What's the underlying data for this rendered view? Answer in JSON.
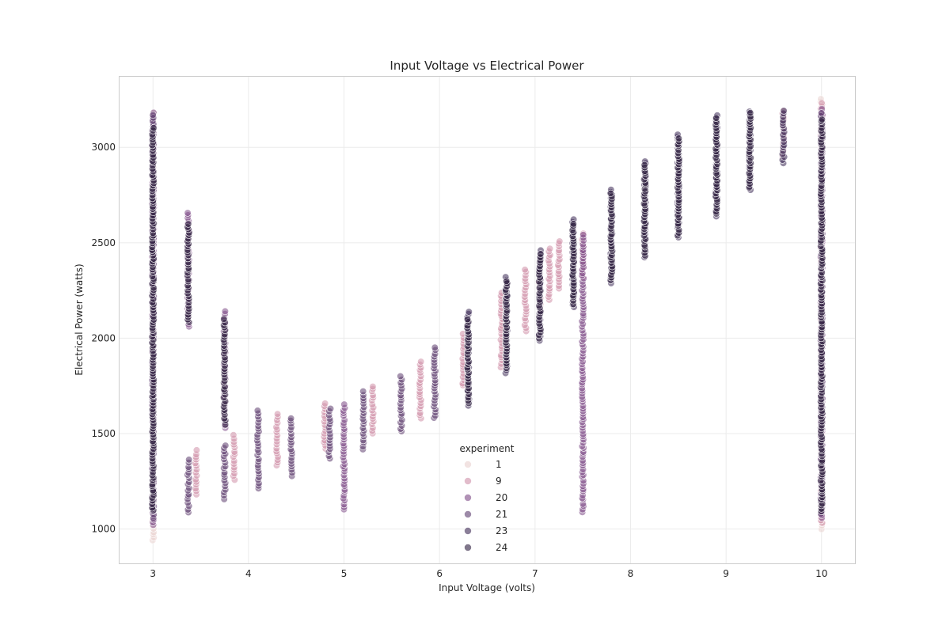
{
  "chart_data": {
    "type": "scatter",
    "title": "Input Voltage vs Electrical Power",
    "xlabel": "Input Voltage (volts)",
    "ylabel": "Electrical Power (watts)",
    "xlim": [
      2.65,
      10.35
    ],
    "ylim": [
      820,
      3370
    ],
    "xticks": [
      3,
      4,
      5,
      6,
      7,
      8,
      9,
      10
    ],
    "yticks": [
      1000,
      1500,
      2000,
      2500,
      3000
    ],
    "grid": true,
    "legend": {
      "title": "experiment",
      "placement": "lower-center",
      "entries": [
        "1",
        "9",
        "20",
        "21",
        "23",
        "24"
      ]
    },
    "colors": {
      "1": "#ead1cf",
      "9": "#cf8fa8",
      "20": "#7d4a86",
      "21": "#5c3c6e",
      "23": "#3d2a55",
      "24": "#2b1d3d"
    },
    "series": [
      {
        "name": "1",
        "columns": [
          {
            "x": 3.0,
            "ymin": 940,
            "ymax": 3180
          },
          {
            "x": 10.0,
            "ymin": 1000,
            "ymax": 3250
          }
        ]
      },
      {
        "name": "9",
        "columns": [
          {
            "x": 3.45,
            "ymin": 1180,
            "ymax": 1410
          },
          {
            "x": 3.85,
            "ymin": 1260,
            "ymax": 1490
          },
          {
            "x": 4.3,
            "ymin": 1330,
            "ymax": 1600
          },
          {
            "x": 4.8,
            "ymin": 1420,
            "ymax": 1660
          },
          {
            "x": 5.3,
            "ymin": 1500,
            "ymax": 1750
          },
          {
            "x": 5.8,
            "ymin": 1580,
            "ymax": 1880
          },
          {
            "x": 6.25,
            "ymin": 1750,
            "ymax": 2020
          },
          {
            "x": 6.65,
            "ymin": 1850,
            "ymax": 2240
          },
          {
            "x": 6.9,
            "ymin": 2040,
            "ymax": 2360
          },
          {
            "x": 7.05,
            "ymin": 2150,
            "ymax": 2420
          },
          {
            "x": 7.15,
            "ymin": 2200,
            "ymax": 2470
          },
          {
            "x": 7.25,
            "ymin": 2260,
            "ymax": 2510
          },
          {
            "x": 7.5,
            "ymin": 2320,
            "ymax": 2550
          },
          {
            "x": 9.6,
            "ymin": 2950,
            "ymax": 3190
          },
          {
            "x": 10.0,
            "ymin": 1030,
            "ymax": 3230
          }
        ]
      },
      {
        "name": "20",
        "columns": [
          {
            "x": 3.0,
            "ymin": 1020,
            "ymax": 3180
          },
          {
            "x": 3.37,
            "ymin": 2060,
            "ymax": 2660
          },
          {
            "x": 3.75,
            "ymin": 1530,
            "ymax": 2140
          },
          {
            "x": 5.0,
            "ymin": 1100,
            "ymax": 1650
          },
          {
            "x": 7.5,
            "ymin": 1090,
            "ymax": 2540
          },
          {
            "x": 10.0,
            "ymin": 1060,
            "ymax": 3200
          }
        ]
      },
      {
        "name": "21",
        "columns": [
          {
            "x": 3.0,
            "ymin": 1060,
            "ymax": 3170
          },
          {
            "x": 3.37,
            "ymin": 1090,
            "ymax": 1360
          },
          {
            "x": 3.75,
            "ymin": 1160,
            "ymax": 1440
          },
          {
            "x": 4.1,
            "ymin": 1210,
            "ymax": 1620
          },
          {
            "x": 4.45,
            "ymin": 1280,
            "ymax": 1580
          },
          {
            "x": 4.85,
            "ymin": 1370,
            "ymax": 1630
          },
          {
            "x": 5.2,
            "ymin": 1420,
            "ymax": 1720
          },
          {
            "x": 5.6,
            "ymin": 1510,
            "ymax": 1800
          },
          {
            "x": 5.95,
            "ymin": 1580,
            "ymax": 1950
          },
          {
            "x": 10.0,
            "ymin": 1080,
            "ymax": 3180
          }
        ]
      },
      {
        "name": "23",
        "columns": [
          {
            "x": 6.3,
            "ymin": 1650,
            "ymax": 2140
          },
          {
            "x": 6.7,
            "ymin": 1820,
            "ymax": 2320
          },
          {
            "x": 7.05,
            "ymin": 1990,
            "ymax": 2460
          },
          {
            "x": 7.4,
            "ymin": 2160,
            "ymax": 2620
          },
          {
            "x": 7.8,
            "ymin": 2290,
            "ymax": 2780
          },
          {
            "x": 8.15,
            "ymin": 2420,
            "ymax": 2930
          },
          {
            "x": 8.5,
            "ymin": 2530,
            "ymax": 3070
          },
          {
            "x": 8.9,
            "ymin": 2640,
            "ymax": 3170
          },
          {
            "x": 9.25,
            "ymin": 2780,
            "ymax": 3190
          },
          {
            "x": 9.6,
            "ymin": 2920,
            "ymax": 3190
          }
        ]
      },
      {
        "name": "24",
        "columns": [
          {
            "x": 3.0,
            "ymin": 1100,
            "ymax": 3100
          },
          {
            "x": 3.37,
            "ymin": 2080,
            "ymax": 2600
          },
          {
            "x": 3.75,
            "ymin": 1550,
            "ymax": 2100
          },
          {
            "x": 6.3,
            "ymin": 1660,
            "ymax": 2100
          },
          {
            "x": 6.7,
            "ymin": 1840,
            "ymax": 2300
          },
          {
            "x": 7.05,
            "ymin": 2000,
            "ymax": 2440
          },
          {
            "x": 7.4,
            "ymin": 2180,
            "ymax": 2600
          },
          {
            "x": 7.8,
            "ymin": 2300,
            "ymax": 2760
          },
          {
            "x": 8.15,
            "ymin": 2430,
            "ymax": 2910
          },
          {
            "x": 8.5,
            "ymin": 2540,
            "ymax": 3050
          },
          {
            "x": 8.9,
            "ymin": 2650,
            "ymax": 3150
          },
          {
            "x": 9.25,
            "ymin": 2790,
            "ymax": 3180
          },
          {
            "x": 10.0,
            "ymin": 1090,
            "ymax": 3150
          }
        ]
      }
    ]
  }
}
